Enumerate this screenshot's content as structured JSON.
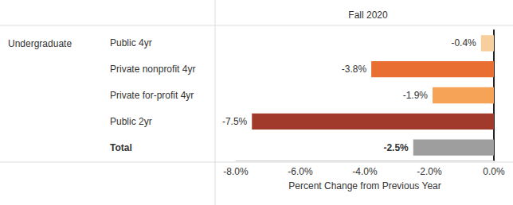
{
  "chart_data": {
    "type": "bar",
    "orientation": "horizontal",
    "title": "Fall 2020",
    "ylabel": "Undergraduate",
    "xlabel": "Percent Change from Previous Year",
    "categories": [
      "Public 4yr",
      "Private nonprofit 4yr",
      "Private for-profit 4yr",
      "Public 2yr",
      "Total"
    ],
    "values": [
      -0.4,
      -3.8,
      -1.9,
      -7.5,
      -2.5
    ],
    "value_labels": [
      "-0.4%",
      "-3.8%",
      "-1.9%",
      "-7.5%",
      "-2.5%"
    ],
    "colors": [
      "#f6cf9c",
      "#e86e31",
      "#f6a257",
      "#a23a2b",
      "#9e9e9e"
    ],
    "xlim": [
      -8,
      0
    ],
    "xticks": [
      {
        "value": -8,
        "label": "-8.0%"
      },
      {
        "value": -6,
        "label": "-6.0%"
      },
      {
        "value": -4,
        "label": "-4.0%"
      },
      {
        "value": -2,
        "label": "-2.0%"
      },
      {
        "value": 0,
        "label": "0.0%"
      }
    ],
    "data_labels": true,
    "grid": false
  }
}
